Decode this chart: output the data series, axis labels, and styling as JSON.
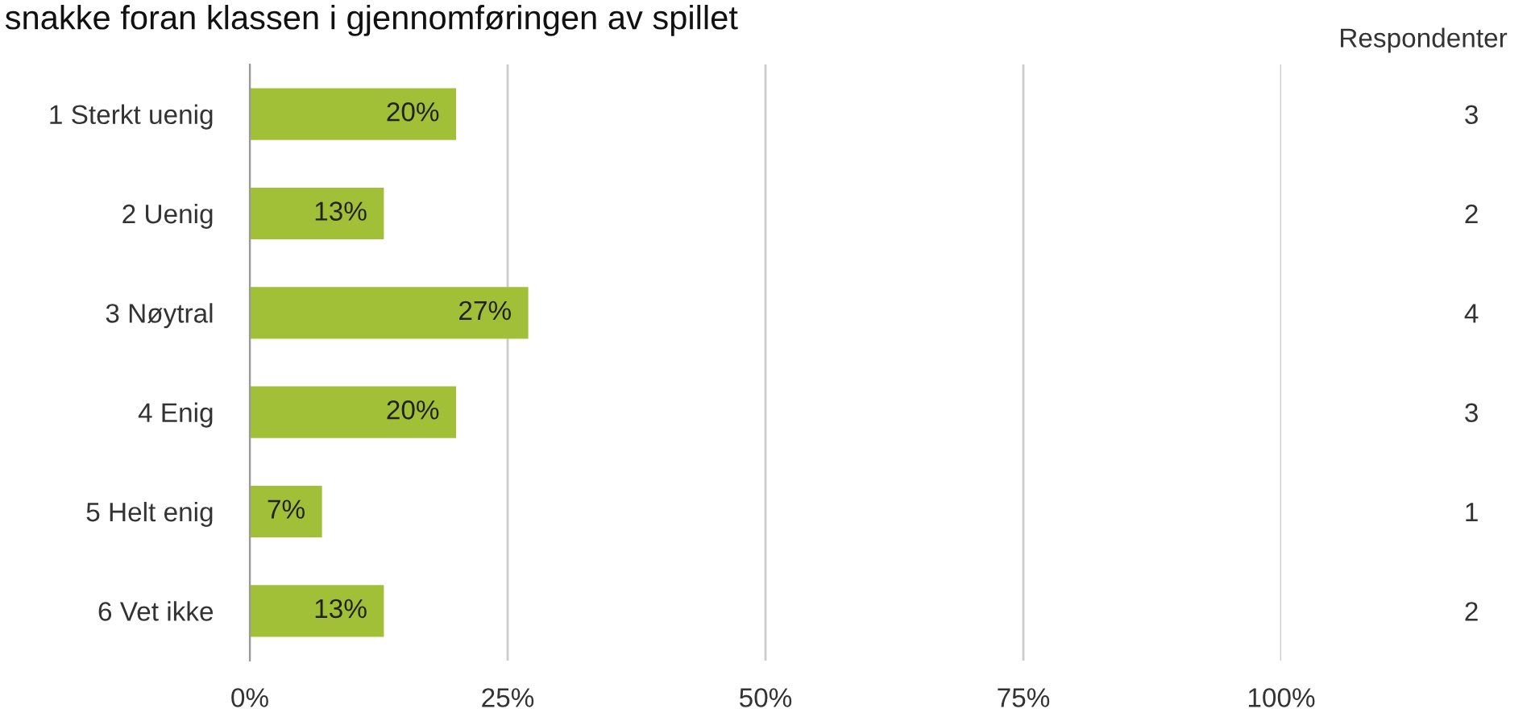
{
  "chart_data": {
    "type": "bar",
    "orientation": "horizontal",
    "title": "snakke foran klassen i gjennomføringen av spillet",
    "categories": [
      "1 Sterkt uenig",
      "2 Uenig",
      "3 Nøytral",
      "4 Enig",
      "5 Helt enig",
      "6 Vet ikke"
    ],
    "values": [
      20,
      13,
      27,
      20,
      7,
      13
    ],
    "value_labels": [
      "20%",
      "13%",
      "27%",
      "20%",
      "7%",
      "13%"
    ],
    "color": "#a1c037",
    "xlim": [
      0,
      100
    ],
    "xticks": [
      {
        "value": 0,
        "label": "0%"
      },
      {
        "value": 25,
        "label": "25%"
      },
      {
        "value": 50,
        "label": "50%"
      },
      {
        "value": 75,
        "label": "75%"
      },
      {
        "value": 100,
        "label": "100%"
      }
    ],
    "y2label": "Respondenter",
    "y2_categories": [
      "3",
      "2",
      "4",
      "3",
      "1",
      "2"
    ],
    "grid": "x"
  }
}
